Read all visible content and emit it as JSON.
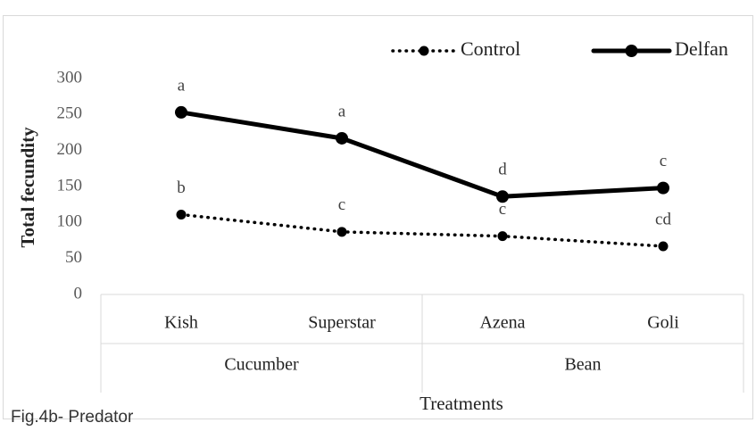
{
  "chart_data": {
    "type": "line",
    "caption": "Fig.4b- Predator",
    "x_label": "Treatments",
    "y_label": "Total fecundity",
    "categories": [
      "Kish",
      "Superstar",
      "Azena",
      "Goli"
    ],
    "category_groups": [
      {
        "name": "Cucumber",
        "members": [
          "Kish",
          "Superstar"
        ]
      },
      {
        "name": "Bean",
        "members": [
          "Azena",
          "Goli"
        ]
      }
    ],
    "series": [
      {
        "name": "Control",
        "color": "#000000",
        "style": "dotted",
        "values": [
          111,
          87,
          81,
          67
        ],
        "labels": [
          "b",
          "c",
          "c",
          "cd"
        ]
      },
      {
        "name": "Delfan",
        "color": "#000000",
        "style": "solid",
        "values": [
          253,
          217,
          136,
          148
        ],
        "labels": [
          "a",
          "a",
          "d",
          "c"
        ]
      }
    ],
    "ylim": [
      0,
      300
    ],
    "yticks": [
      0,
      50,
      100,
      150,
      200,
      250,
      300
    ],
    "grid": false,
    "legend": "top-right"
  }
}
